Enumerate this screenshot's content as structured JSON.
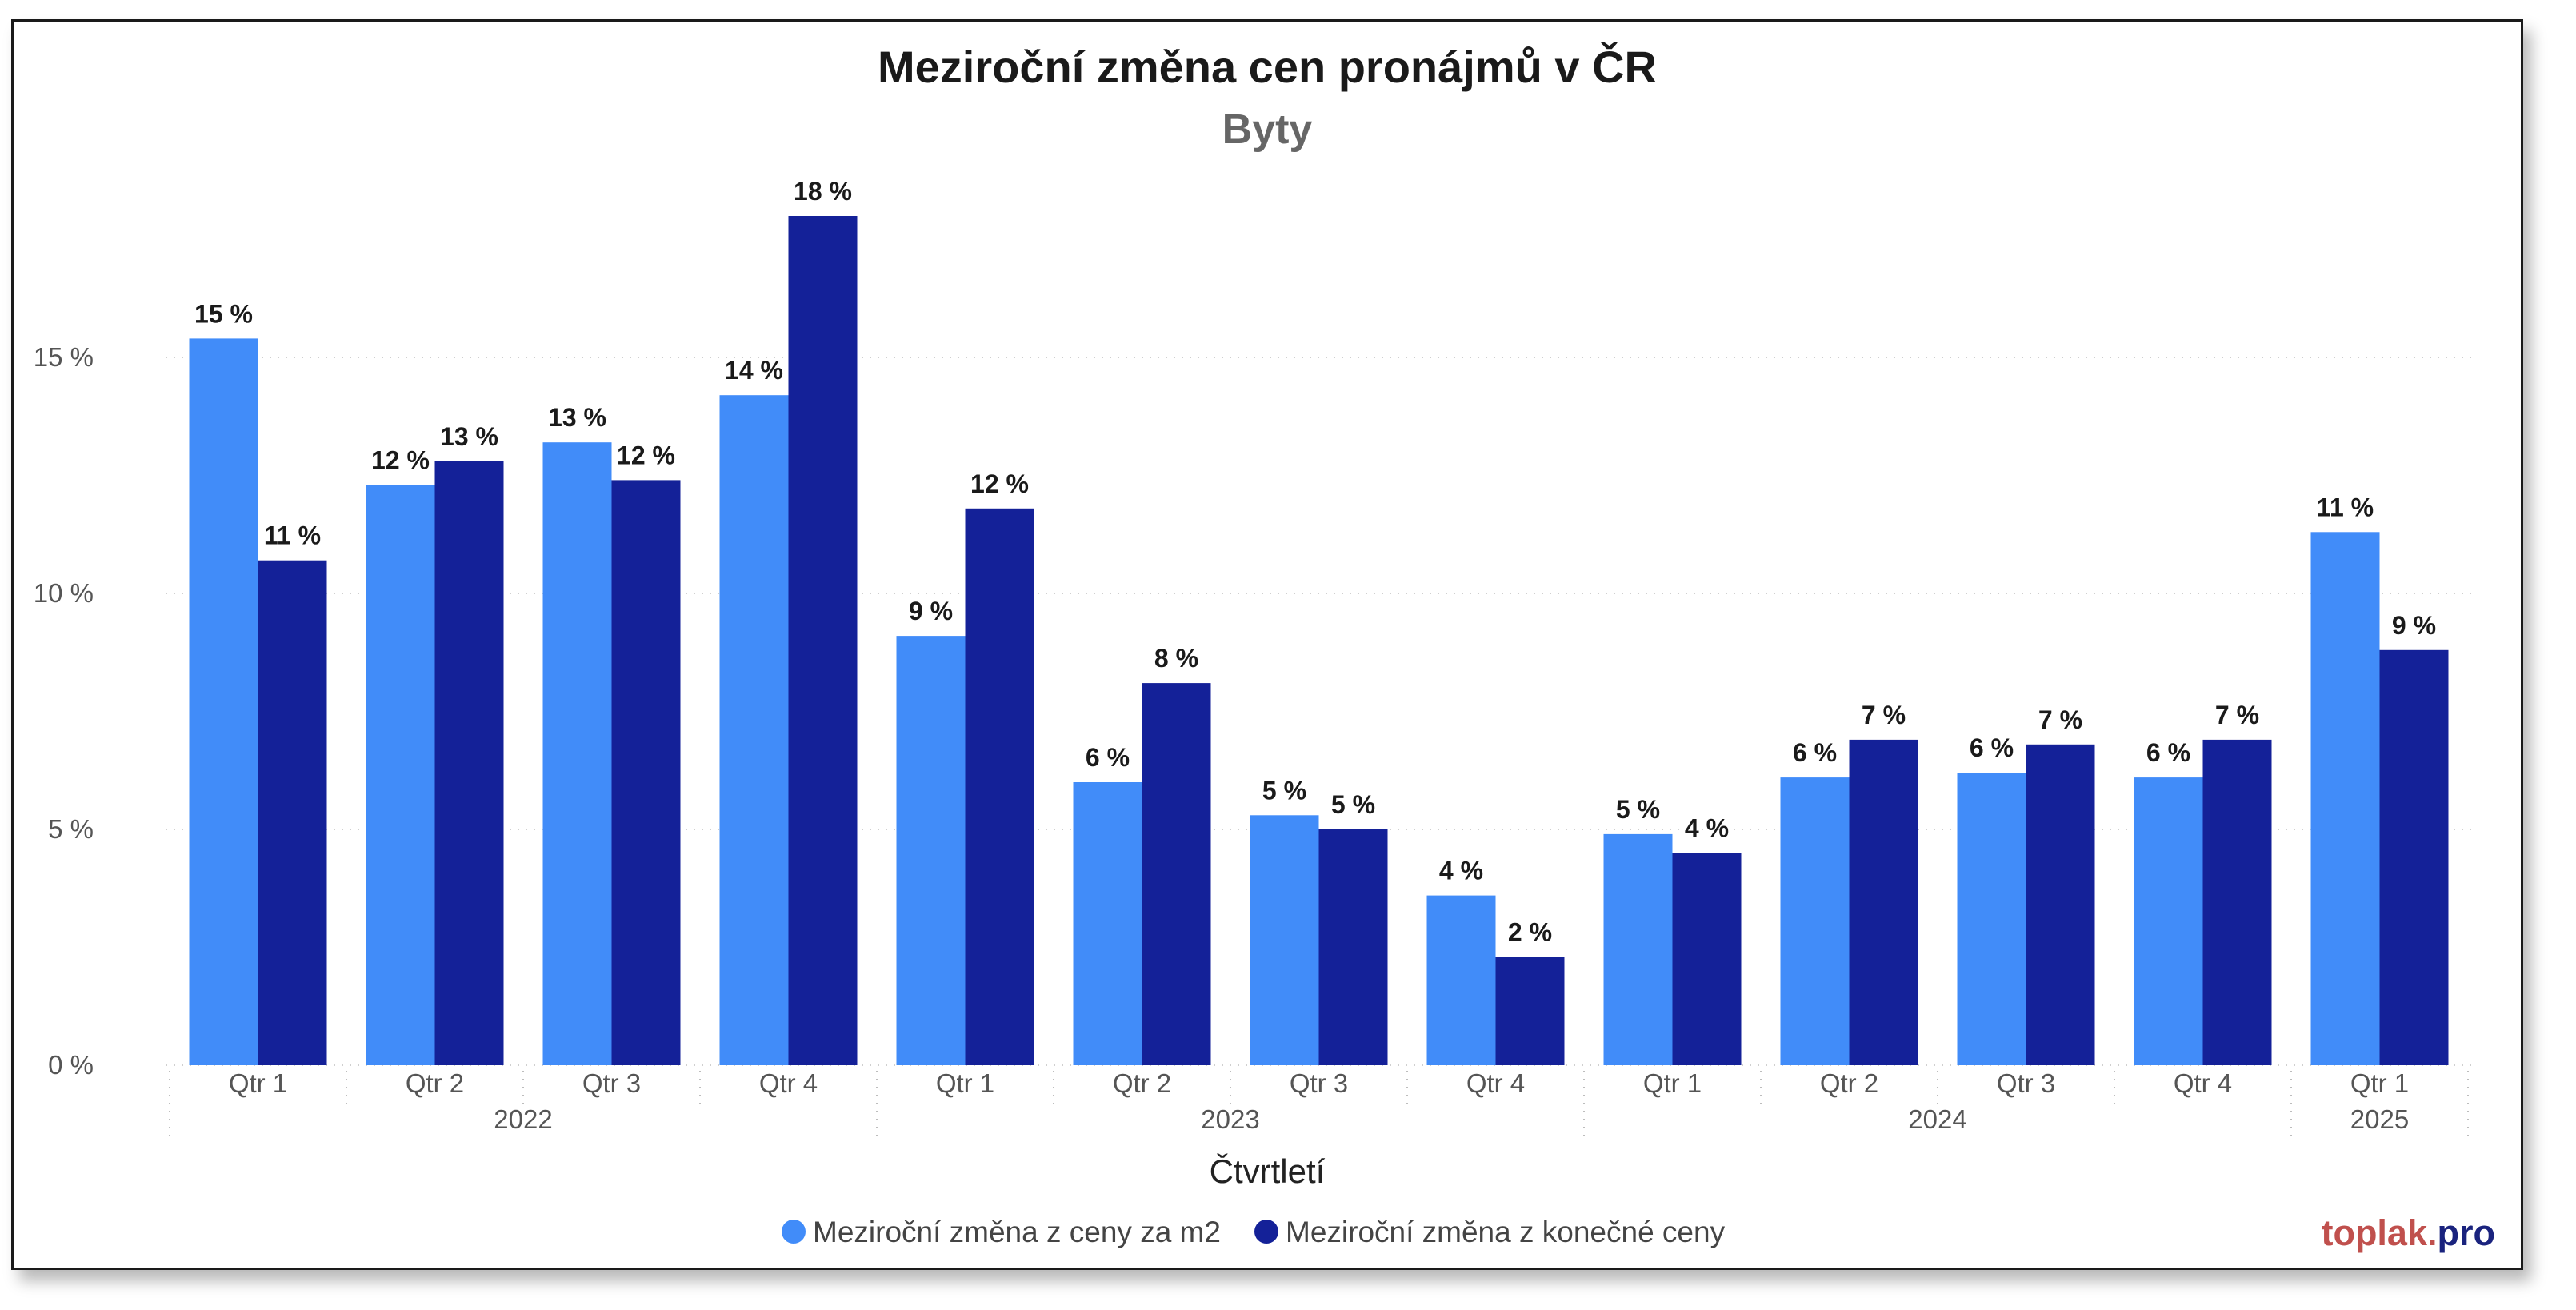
{
  "chart_data": {
    "type": "bar",
    "title": "Meziroční změna cen pronájmů v ČR",
    "subtitle": "Byty",
    "xlabel": "Čtvrtletí",
    "ylabel": "",
    "ylim": [
      0,
      19
    ],
    "yticks": [
      0,
      5,
      10,
      15
    ],
    "ytick_labels": [
      "0 %",
      "5 %",
      "10 %",
      "15 %"
    ],
    "grid": true,
    "legend_position": "bottom-center",
    "groups": [
      {
        "year": "2022",
        "quarters": [
          "Qtr 1",
          "Qtr 2",
          "Qtr 3",
          "Qtr 4"
        ]
      },
      {
        "year": "2023",
        "quarters": [
          "Qtr 1",
          "Qtr 2",
          "Qtr 3",
          "Qtr 4"
        ]
      },
      {
        "year": "2024",
        "quarters": [
          "Qtr 1",
          "Qtr 2",
          "Qtr 3",
          "Qtr 4"
        ]
      },
      {
        "year": "2025",
        "quarters": [
          "Qtr 1"
        ]
      }
    ],
    "series": [
      {
        "name": "Meziroční změna z ceny za m2",
        "color": "#418cf9",
        "values": [
          15.4,
          12.3,
          13.2,
          14.2,
          9.1,
          6.0,
          5.3,
          3.6,
          4.9,
          6.1,
          6.2,
          6.1,
          11.3
        ],
        "labels": [
          "15 %",
          "12 %",
          "13 %",
          "14 %",
          "9 %",
          "6 %",
          "5 %",
          "4 %",
          "5 %",
          "6 %",
          "6 %",
          "6 %",
          "11 %"
        ]
      },
      {
        "name": "Meziroční změna z konečné ceny",
        "color": "#142198",
        "values": [
          10.7,
          12.8,
          12.4,
          18.0,
          11.8,
          8.1,
          5.0,
          2.3,
          4.5,
          6.9,
          6.8,
          6.9,
          8.8
        ],
        "labels": [
          "11 %",
          "13 %",
          "12 %",
          "18 %",
          "12 %",
          "8 %",
          "5 %",
          "2 %",
          "4 %",
          "7 %",
          "7 %",
          "7 %",
          "9 %"
        ]
      }
    ]
  },
  "branding": {
    "part1": "toplak.",
    "part2": "pro",
    "color1": "#c0504d",
    "color2": "#1a237e"
  }
}
